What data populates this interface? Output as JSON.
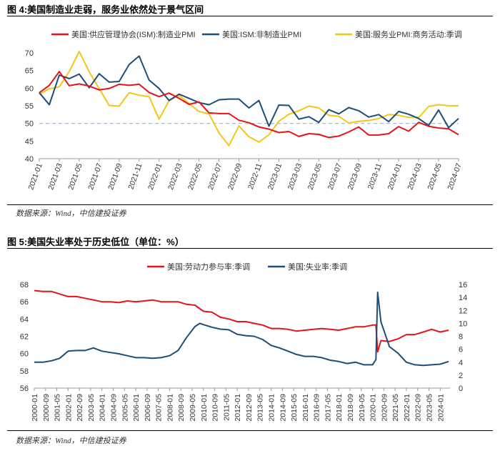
{
  "chart_data": [
    {
      "type": "line",
      "title": "图 4:美国制造业走弱，服务业依然处于景气区间",
      "source": "数据来源：Wind，中信建投证券",
      "ylim": [
        40,
        70
      ],
      "yticks": [
        40,
        45,
        50,
        55,
        60,
        65,
        70
      ],
      "reference_line": 50,
      "x_labels": [
        "2021-01",
        "2021-03",
        "2021-05",
        "2021-07",
        "2021-09",
        "2021-11",
        "2022-01",
        "2022-03",
        "2022-05",
        "2022-07",
        "2022-09",
        "2022-11",
        "2023-01",
        "2023-03",
        "2023-05",
        "2023-07",
        "2023-09",
        "2023-11",
        "2024-01",
        "2024-03",
        "2024-05",
        "2024-07"
      ],
      "legend_position": "top",
      "series": [
        {
          "name": "美国:供应管理协会(ISM):制造业PMI",
          "color": "#e8121a",
          "values": [
            58.7,
            60.8,
            64.7,
            60.7,
            61.2,
            60.6,
            59.5,
            59.9,
            61.1,
            60.8,
            61.1,
            58.8,
            57.6,
            58.6,
            57.1,
            55.4,
            56.1,
            53.0,
            52.8,
            52.8,
            50.9,
            50.2,
            49.0,
            48.4,
            47.4,
            47.7,
            46.3,
            47.1,
            46.9,
            46.0,
            46.4,
            47.6,
            49.0,
            46.7,
            46.7,
            47.1,
            49.1,
            47.8,
            50.3,
            49.2,
            48.7,
            48.5,
            46.8
          ]
        },
        {
          "name": "美国:ISM:非制造业PMI",
          "color": "#1d4e79",
          "values": [
            58.7,
            55.3,
            63.7,
            62.7,
            64.0,
            60.1,
            64.1,
            61.7,
            61.9,
            66.7,
            69.1,
            62.3,
            59.9,
            56.5,
            58.3,
            57.1,
            55.9,
            55.3,
            56.7,
            56.9,
            56.9,
            54.4,
            56.5,
            49.2,
            55.2,
            55.1,
            51.2,
            51.9,
            50.3,
            53.9,
            52.7,
            54.5,
            53.6,
            51.8,
            52.5,
            50.5,
            53.4,
            52.6,
            51.4,
            49.4,
            53.8,
            48.8,
            51.4
          ]
        },
        {
          "name": "美国:服务业PMI:商务活动:季调",
          "color": "#f5c518",
          "values": [
            58.3,
            59.8,
            60.4,
            64.7,
            70.4,
            64.6,
            59.9,
            55.1,
            54.9,
            58.7,
            58.0,
            57.6,
            51.2,
            56.5,
            58.0,
            55.6,
            53.4,
            52.7,
            47.3,
            43.7,
            49.3,
            46.2,
            44.7,
            46.8,
            50.6,
            52.6,
            53.6,
            54.9,
            54.4,
            52.3,
            52.0,
            50.1,
            50.6,
            50.8,
            51.4,
            52.5,
            52.3,
            51.7,
            51.7,
            54.8,
            55.3,
            55.0,
            55.0
          ]
        }
      ]
    },
    {
      "type": "line",
      "title": "图 5:美国失业率处于历史低位（单位：%）",
      "source": "数据来源：Wind，中信建投证券",
      "ylim_left": [
        56,
        68
      ],
      "yticks_left": [
        56,
        58,
        60,
        62,
        64,
        66,
        68
      ],
      "ylim_right": [
        0,
        16
      ],
      "yticks_right": [
        0,
        2,
        4,
        6,
        8,
        10,
        12,
        14,
        16
      ],
      "x_labels": [
        "2000-01",
        "2000-09",
        "2001-05",
        "2002-01",
        "2002-09",
        "2003-05",
        "2004-01",
        "2004-09",
        "2005-05",
        "2006-01",
        "2006-09",
        "2007-05",
        "2008-01",
        "2008-09",
        "2009-05",
        "2010-01",
        "2010-09",
        "2011-05",
        "2012-01",
        "2012-09",
        "2013-05",
        "2014-01",
        "2014-09",
        "2015-05",
        "2016-01",
        "2016-09",
        "2017-05",
        "2018-01",
        "2018-09",
        "2019-05",
        "2020-01",
        "2020-09",
        "2021-05",
        "2022-01",
        "2022-09",
        "2023-05",
        "2024-01"
      ],
      "legend_position": "top",
      "series": [
        {
          "name": "美国:劳动力参与率:季调",
          "color": "#e8121a",
          "axis": "left",
          "points": [
            [
              2000.0,
              67.3
            ],
            [
              2000.5,
              67.2
            ],
            [
              2001.0,
              67.2
            ],
            [
              2001.5,
              66.9
            ],
            [
              2002.0,
              66.6
            ],
            [
              2002.5,
              66.6
            ],
            [
              2003.0,
              66.4
            ],
            [
              2003.5,
              66.2
            ],
            [
              2004.0,
              66.0
            ],
            [
              2004.5,
              66.0
            ],
            [
              2005.0,
              65.9
            ],
            [
              2005.5,
              66.1
            ],
            [
              2006.0,
              66.0
            ],
            [
              2006.5,
              66.1
            ],
            [
              2007.0,
              66.2
            ],
            [
              2007.5,
              66.0
            ],
            [
              2008.0,
              66.0
            ],
            [
              2008.5,
              66.0
            ],
            [
              2009.0,
              65.7
            ],
            [
              2009.5,
              65.6
            ],
            [
              2010.0,
              64.9
            ],
            [
              2010.5,
              64.8
            ],
            [
              2011.0,
              64.2
            ],
            [
              2011.5,
              64.0
            ],
            [
              2012.0,
              63.7
            ],
            [
              2012.5,
              63.7
            ],
            [
              2013.0,
              63.5
            ],
            [
              2013.5,
              63.3
            ],
            [
              2014.0,
              62.9
            ],
            [
              2014.5,
              62.9
            ],
            [
              2015.0,
              62.8
            ],
            [
              2015.5,
              62.6
            ],
            [
              2016.0,
              62.7
            ],
            [
              2016.5,
              62.8
            ],
            [
              2017.0,
              62.9
            ],
            [
              2017.5,
              62.8
            ],
            [
              2018.0,
              62.7
            ],
            [
              2018.5,
              62.9
            ],
            [
              2019.0,
              63.1
            ],
            [
              2019.5,
              63.1
            ],
            [
              2020.0,
              63.3
            ],
            [
              2020.2,
              63.3
            ],
            [
              2020.3,
              60.2
            ],
            [
              2020.5,
              61.5
            ],
            [
              2021.0,
              61.4
            ],
            [
              2021.5,
              61.7
            ],
            [
              2022.0,
              62.2
            ],
            [
              2022.5,
              62.2
            ],
            [
              2023.0,
              62.5
            ],
            [
              2023.5,
              62.8
            ],
            [
              2024.0,
              62.5
            ],
            [
              2024.5,
              62.7
            ]
          ]
        },
        {
          "name": "美国:失业率:季调",
          "color": "#1d4e79",
          "axis": "right",
          "points": [
            [
              2000.0,
              4.0
            ],
            [
              2000.5,
              4.0
            ],
            [
              2001.0,
              4.2
            ],
            [
              2001.5,
              4.6
            ],
            [
              2002.0,
              5.7
            ],
            [
              2002.5,
              5.8
            ],
            [
              2003.0,
              5.8
            ],
            [
              2003.5,
              6.2
            ],
            [
              2004.0,
              5.7
            ],
            [
              2004.5,
              5.5
            ],
            [
              2005.0,
              5.3
            ],
            [
              2005.5,
              5.0
            ],
            [
              2006.0,
              4.7
            ],
            [
              2006.5,
              4.7
            ],
            [
              2007.0,
              4.6
            ],
            [
              2007.5,
              4.7
            ],
            [
              2008.0,
              5.0
            ],
            [
              2008.5,
              5.8
            ],
            [
              2009.0,
              7.8
            ],
            [
              2009.5,
              9.5
            ],
            [
              2009.8,
              10.0
            ],
            [
              2010.0,
              9.8
            ],
            [
              2010.5,
              9.4
            ],
            [
              2011.0,
              9.1
            ],
            [
              2011.5,
              9.0
            ],
            [
              2012.0,
              8.3
            ],
            [
              2012.5,
              8.1
            ],
            [
              2013.0,
              8.0
            ],
            [
              2013.5,
              7.5
            ],
            [
              2014.0,
              6.6
            ],
            [
              2014.5,
              6.2
            ],
            [
              2015.0,
              5.7
            ],
            [
              2015.5,
              5.2
            ],
            [
              2016.0,
              4.9
            ],
            [
              2016.5,
              4.9
            ],
            [
              2017.0,
              4.7
            ],
            [
              2017.5,
              4.3
            ],
            [
              2018.0,
              4.1
            ],
            [
              2018.5,
              3.8
            ],
            [
              2019.0,
              4.0
            ],
            [
              2019.5,
              3.6
            ],
            [
              2020.0,
              3.6
            ],
            [
              2020.2,
              4.4
            ],
            [
              2020.3,
              14.8
            ],
            [
              2020.5,
              10.2
            ],
            [
              2021.0,
              6.4
            ],
            [
              2021.5,
              5.4
            ],
            [
              2022.0,
              4.0
            ],
            [
              2022.5,
              3.6
            ],
            [
              2023.0,
              3.5
            ],
            [
              2023.5,
              3.6
            ],
            [
              2024.0,
              3.7
            ],
            [
              2024.5,
              4.1
            ]
          ]
        }
      ]
    }
  ]
}
